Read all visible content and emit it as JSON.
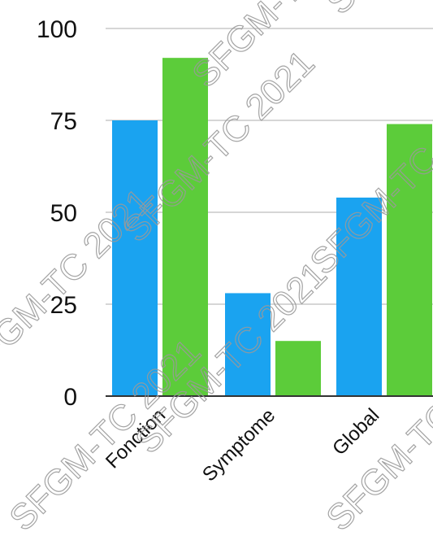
{
  "chart_data": {
    "type": "bar",
    "categories": [
      "Fonction",
      "Symptome",
      "Global"
    ],
    "series": [
      {
        "values": [
          75,
          28,
          54
        ],
        "color": "#1aa3f0"
      },
      {
        "values": [
          92,
          15,
          74
        ],
        "color": "#5ccc3a"
      }
    ],
    "ylim": [
      0,
      100
    ],
    "yticks": [
      0,
      25,
      50,
      75,
      100
    ],
    "grid": true,
    "legend": "none"
  },
  "watermark": {
    "text": "SFGM-TC 2021"
  }
}
